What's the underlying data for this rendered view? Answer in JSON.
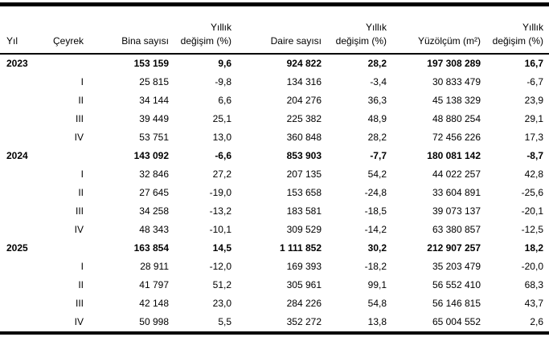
{
  "colors": {
    "background": "#ffffff",
    "text": "#000000",
    "border": "#000000"
  },
  "table": {
    "columns": [
      {
        "id": "yil",
        "label": "Yıl"
      },
      {
        "id": "ceyrek",
        "label": "Çeyrek"
      },
      {
        "id": "bina-sayisi",
        "label": "Bina sayısı"
      },
      {
        "id": "yillik-degisim-bina",
        "label": "Yıllık\ndeğişim (%)"
      },
      {
        "id": "daire-sayisi",
        "label": "Daire sayısı"
      },
      {
        "id": "yillik-degisim-daire",
        "label": "Yıllık\ndeğişim (%)"
      },
      {
        "id": "yuzolcum",
        "label": "Yüzölçüm (m²)"
      },
      {
        "id": "yillik-degisim-yuzolcum",
        "label": "Yıllık\ndeğişim (%)"
      }
    ],
    "rows": [
      {
        "type": "year",
        "cells": [
          "2023",
          "",
          "153 159",
          "9,6",
          "924 822",
          "28,2",
          "197 308 289",
          "16,7"
        ]
      },
      {
        "type": "quarter",
        "cells": [
          "",
          "I",
          "25 815",
          "-9,8",
          "134 316",
          "-3,4",
          "30 833 479",
          "-6,7"
        ]
      },
      {
        "type": "quarter",
        "cells": [
          "",
          "II",
          "34 144",
          "6,6",
          "204 276",
          "36,3",
          "45 138 329",
          "23,9"
        ]
      },
      {
        "type": "quarter",
        "cells": [
          "",
          "III",
          "39 449",
          "25,1",
          "225 382",
          "48,9",
          "48 880 254",
          "29,1"
        ]
      },
      {
        "type": "quarter",
        "cells": [
          "",
          "IV",
          "53 751",
          "13,0",
          "360 848",
          "28,2",
          "72 456 226",
          "17,3"
        ]
      },
      {
        "type": "year",
        "cells": [
          "2024",
          "",
          "143 092",
          "-6,6",
          "853 903",
          "-7,7",
          "180 081 142",
          "-8,7"
        ]
      },
      {
        "type": "quarter",
        "cells": [
          "",
          "I",
          "32 846",
          "27,2",
          "207 135",
          "54,2",
          "44 022 257",
          "42,8"
        ]
      },
      {
        "type": "quarter",
        "cells": [
          "",
          "II",
          "27 645",
          "-19,0",
          "153 658",
          "-24,8",
          "33 604 891",
          "-25,6"
        ]
      },
      {
        "type": "quarter",
        "cells": [
          "",
          "III",
          "34 258",
          "-13,2",
          "183 581",
          "-18,5",
          "39 073 137",
          "-20,1"
        ]
      },
      {
        "type": "quarter",
        "cells": [
          "",
          "IV",
          "48 343",
          "-10,1",
          "309 529",
          "-14,2",
          "63 380 857",
          "-12,5"
        ]
      },
      {
        "type": "year",
        "cells": [
          "2025",
          "",
          "163 854",
          "14,5",
          "1 111 852",
          "30,2",
          "212 907 257",
          "18,2"
        ]
      },
      {
        "type": "quarter",
        "cells": [
          "",
          "I",
          "28 911",
          "-12,0",
          "169 393",
          "-18,2",
          "35 203 479",
          "-20,0"
        ]
      },
      {
        "type": "quarter",
        "cells": [
          "",
          "II",
          "41 797",
          "51,2",
          "305 961",
          "99,1",
          "56 552 410",
          "68,3"
        ]
      },
      {
        "type": "quarter",
        "cells": [
          "",
          "III",
          "42 148",
          "23,0",
          "284 226",
          "54,8",
          "56 146 815",
          "43,7"
        ]
      },
      {
        "type": "quarter",
        "cells": [
          "",
          "IV",
          "50 998",
          "5,5",
          "352 272",
          "13,8",
          "65 004 552",
          "2,6"
        ]
      }
    ]
  },
  "chart_data": {
    "type": "table",
    "title": "",
    "columns": [
      "Yıl",
      "Çeyrek",
      "Bina sayısı",
      "Yıllık değişim (%)",
      "Daire sayısı",
      "Yıllık değişim (%)",
      "Yüzölçüm (m²)",
      "Yıllık değişim (%)"
    ],
    "rows": [
      [
        "2023",
        "",
        153159,
        9.6,
        924822,
        28.2,
        197308289,
        16.7
      ],
      [
        "",
        "I",
        25815,
        -9.8,
        134316,
        -3.4,
        30833479,
        -6.7
      ],
      [
        "",
        "II",
        34144,
        6.6,
        204276,
        36.3,
        45138329,
        23.9
      ],
      [
        "",
        "III",
        39449,
        25.1,
        225382,
        48.9,
        48880254,
        29.1
      ],
      [
        "",
        "IV",
        53751,
        13.0,
        360848,
        28.2,
        72456226,
        17.3
      ],
      [
        "2024",
        "",
        143092,
        -6.6,
        853903,
        -7.7,
        180081142,
        -8.7
      ],
      [
        "",
        "I",
        32846,
        27.2,
        207135,
        54.2,
        44022257,
        42.8
      ],
      [
        "",
        "II",
        27645,
        -19.0,
        153658,
        -24.8,
        33604891,
        -25.6
      ],
      [
        "",
        "III",
        34258,
        -13.2,
        183581,
        -18.5,
        39073137,
        -20.1
      ],
      [
        "",
        "IV",
        48343,
        -10.1,
        309529,
        -14.2,
        63380857,
        -12.5
      ],
      [
        "2025",
        "",
        163854,
        14.5,
        1111852,
        30.2,
        212907257,
        18.2
      ],
      [
        "",
        "I",
        28911,
        -12.0,
        169393,
        -18.2,
        35203479,
        -20.0
      ],
      [
        "",
        "II",
        41797,
        51.2,
        305961,
        99.1,
        56552410,
        68.3
      ],
      [
        "",
        "III",
        42148,
        23.0,
        284226,
        54.8,
        56146815,
        43.7
      ],
      [
        "",
        "IV",
        50998,
        5.5,
        352272,
        13.8,
        65004552,
        2.6
      ]
    ]
  }
}
